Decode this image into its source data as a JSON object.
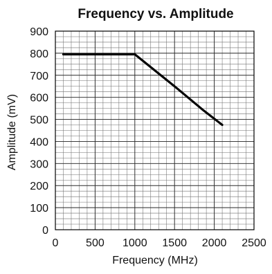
{
  "chart_data": {
    "type": "line",
    "title": "Frequency vs. Amplitude",
    "xlabel": "Frequency (MHz)",
    "ylabel": "Amplitude (mV)",
    "xlim": [
      0,
      2500
    ],
    "ylim": [
      0,
      900
    ],
    "x_ticks": [
      0,
      500,
      1000,
      1500,
      2000,
      2500
    ],
    "y_ticks": [
      0,
      100,
      200,
      300,
      400,
      500,
      600,
      700,
      800,
      900
    ],
    "x_tick_labels": [
      "0",
      "500",
      "1000",
      "1500",
      "2000",
      "2500"
    ],
    "y_tick_labels": [
      "0",
      "100",
      "200",
      "300",
      "400",
      "500",
      "600",
      "700",
      "800",
      "900"
    ],
    "grid": true,
    "series": [
      {
        "x": [
          100,
          1000,
          1500,
          1850,
          2100
        ],
        "y": [
          795,
          795,
          650,
          545,
          475
        ],
        "color": "#000000"
      }
    ]
  }
}
